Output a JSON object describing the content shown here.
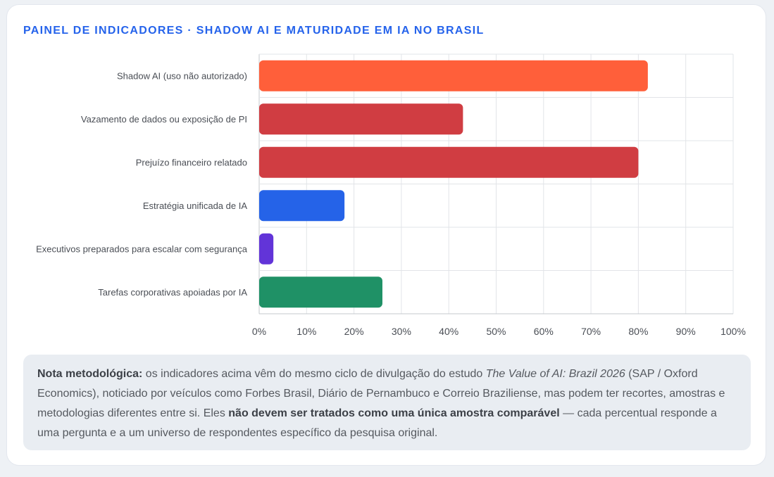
{
  "title": "PAINEL DE INDICADORES · SHADOW AI E MATURIDADE EM IA NO BRASIL",
  "chart_data": {
    "type": "bar",
    "orientation": "horizontal",
    "categories": [
      "Shadow AI (uso não autorizado)",
      "Vazamento de dados ou exposição de PI",
      "Prejuízo financeiro relatado",
      "Estratégia unificada de IA",
      "Executivos preparados para escalar com segurança",
      "Tarefas corporativas apoiadas por IA"
    ],
    "values": [
      82,
      43,
      80,
      18,
      3,
      26
    ],
    "colors": [
      "#ff5f3a",
      "#d03d42",
      "#d03d42",
      "#2563e8",
      "#6234d8",
      "#1f9166"
    ],
    "xlim": [
      0,
      100
    ],
    "xticks": [
      0,
      10,
      20,
      30,
      40,
      50,
      60,
      70,
      80,
      90,
      100
    ],
    "tick_suffix": "%",
    "grid": true,
    "legend": "none"
  },
  "note": {
    "label": "Nota metodológica:",
    "text1": " os indicadores acima vêm do mesmo ciclo de divulgação do estudo ",
    "study": "The Value of AI: Brazil 2026",
    "text2": " (SAP / Oxford Economics), noticiado por veículos como Forbes Brasil, Diário de Pernambuco e Correio Braziliense, mas podem ter recortes, amostras e metodologias diferentes entre si. Eles ",
    "emphasis": "não devem ser tratados como uma única amostra comparável",
    "text3": " — cada percentual responde a uma pergunta e a um universo de respondentes específico da pesquisa original."
  }
}
